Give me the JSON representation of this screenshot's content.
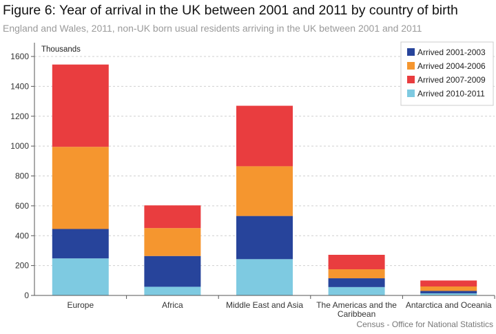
{
  "title": "Figure 6: Year of arrival in the UK between 2001 and 2011 by country of birth",
  "subtitle": "England and Wales, 2011, non-UK born usual residents arriving in the UK between 2001 and 2011",
  "source": "Census - Office for National Statistics",
  "chart_data": {
    "type": "bar",
    "stacked": true,
    "unit_label": "Thousands",
    "categories": [
      "Europe",
      "Africa",
      "Middle East and Asia",
      "The Americas and the Caribbean",
      "Antarctica and Oceania"
    ],
    "category_lines": [
      [
        "Europe"
      ],
      [
        "Africa"
      ],
      [
        "Middle East and Asia"
      ],
      [
        "The Americas and the",
        "Caribbean"
      ],
      [
        "Antarctica and Oceania"
      ]
    ],
    "series": [
      {
        "name": "Arrived 2010-2011",
        "color": "#7ecae1",
        "values": [
          248,
          58,
          243,
          56,
          14
        ]
      },
      {
        "name": "Arrived 2001-2003",
        "color": "#27449b",
        "values": [
          197,
          206,
          289,
          59,
          16
        ]
      },
      {
        "name": "Arrived 2004-2006",
        "color": "#f5962f",
        "values": [
          550,
          187,
          333,
          60,
          30
        ]
      },
      {
        "name": "Arrived 2007-2009",
        "color": "#e93d3f",
        "values": [
          551,
          152,
          405,
          97,
          40
        ]
      }
    ],
    "legend_order": [
      "Arrived 2001-2003",
      "Arrived 2004-2006",
      "Arrived 2007-2009",
      "Arrived 2010-2011"
    ],
    "ylim": [
      0,
      1600
    ],
    "yticks": [
      0,
      200,
      400,
      600,
      800,
      1000,
      1200,
      1400,
      1600
    ],
    "grid": true,
    "legend_position": "top-right"
  }
}
